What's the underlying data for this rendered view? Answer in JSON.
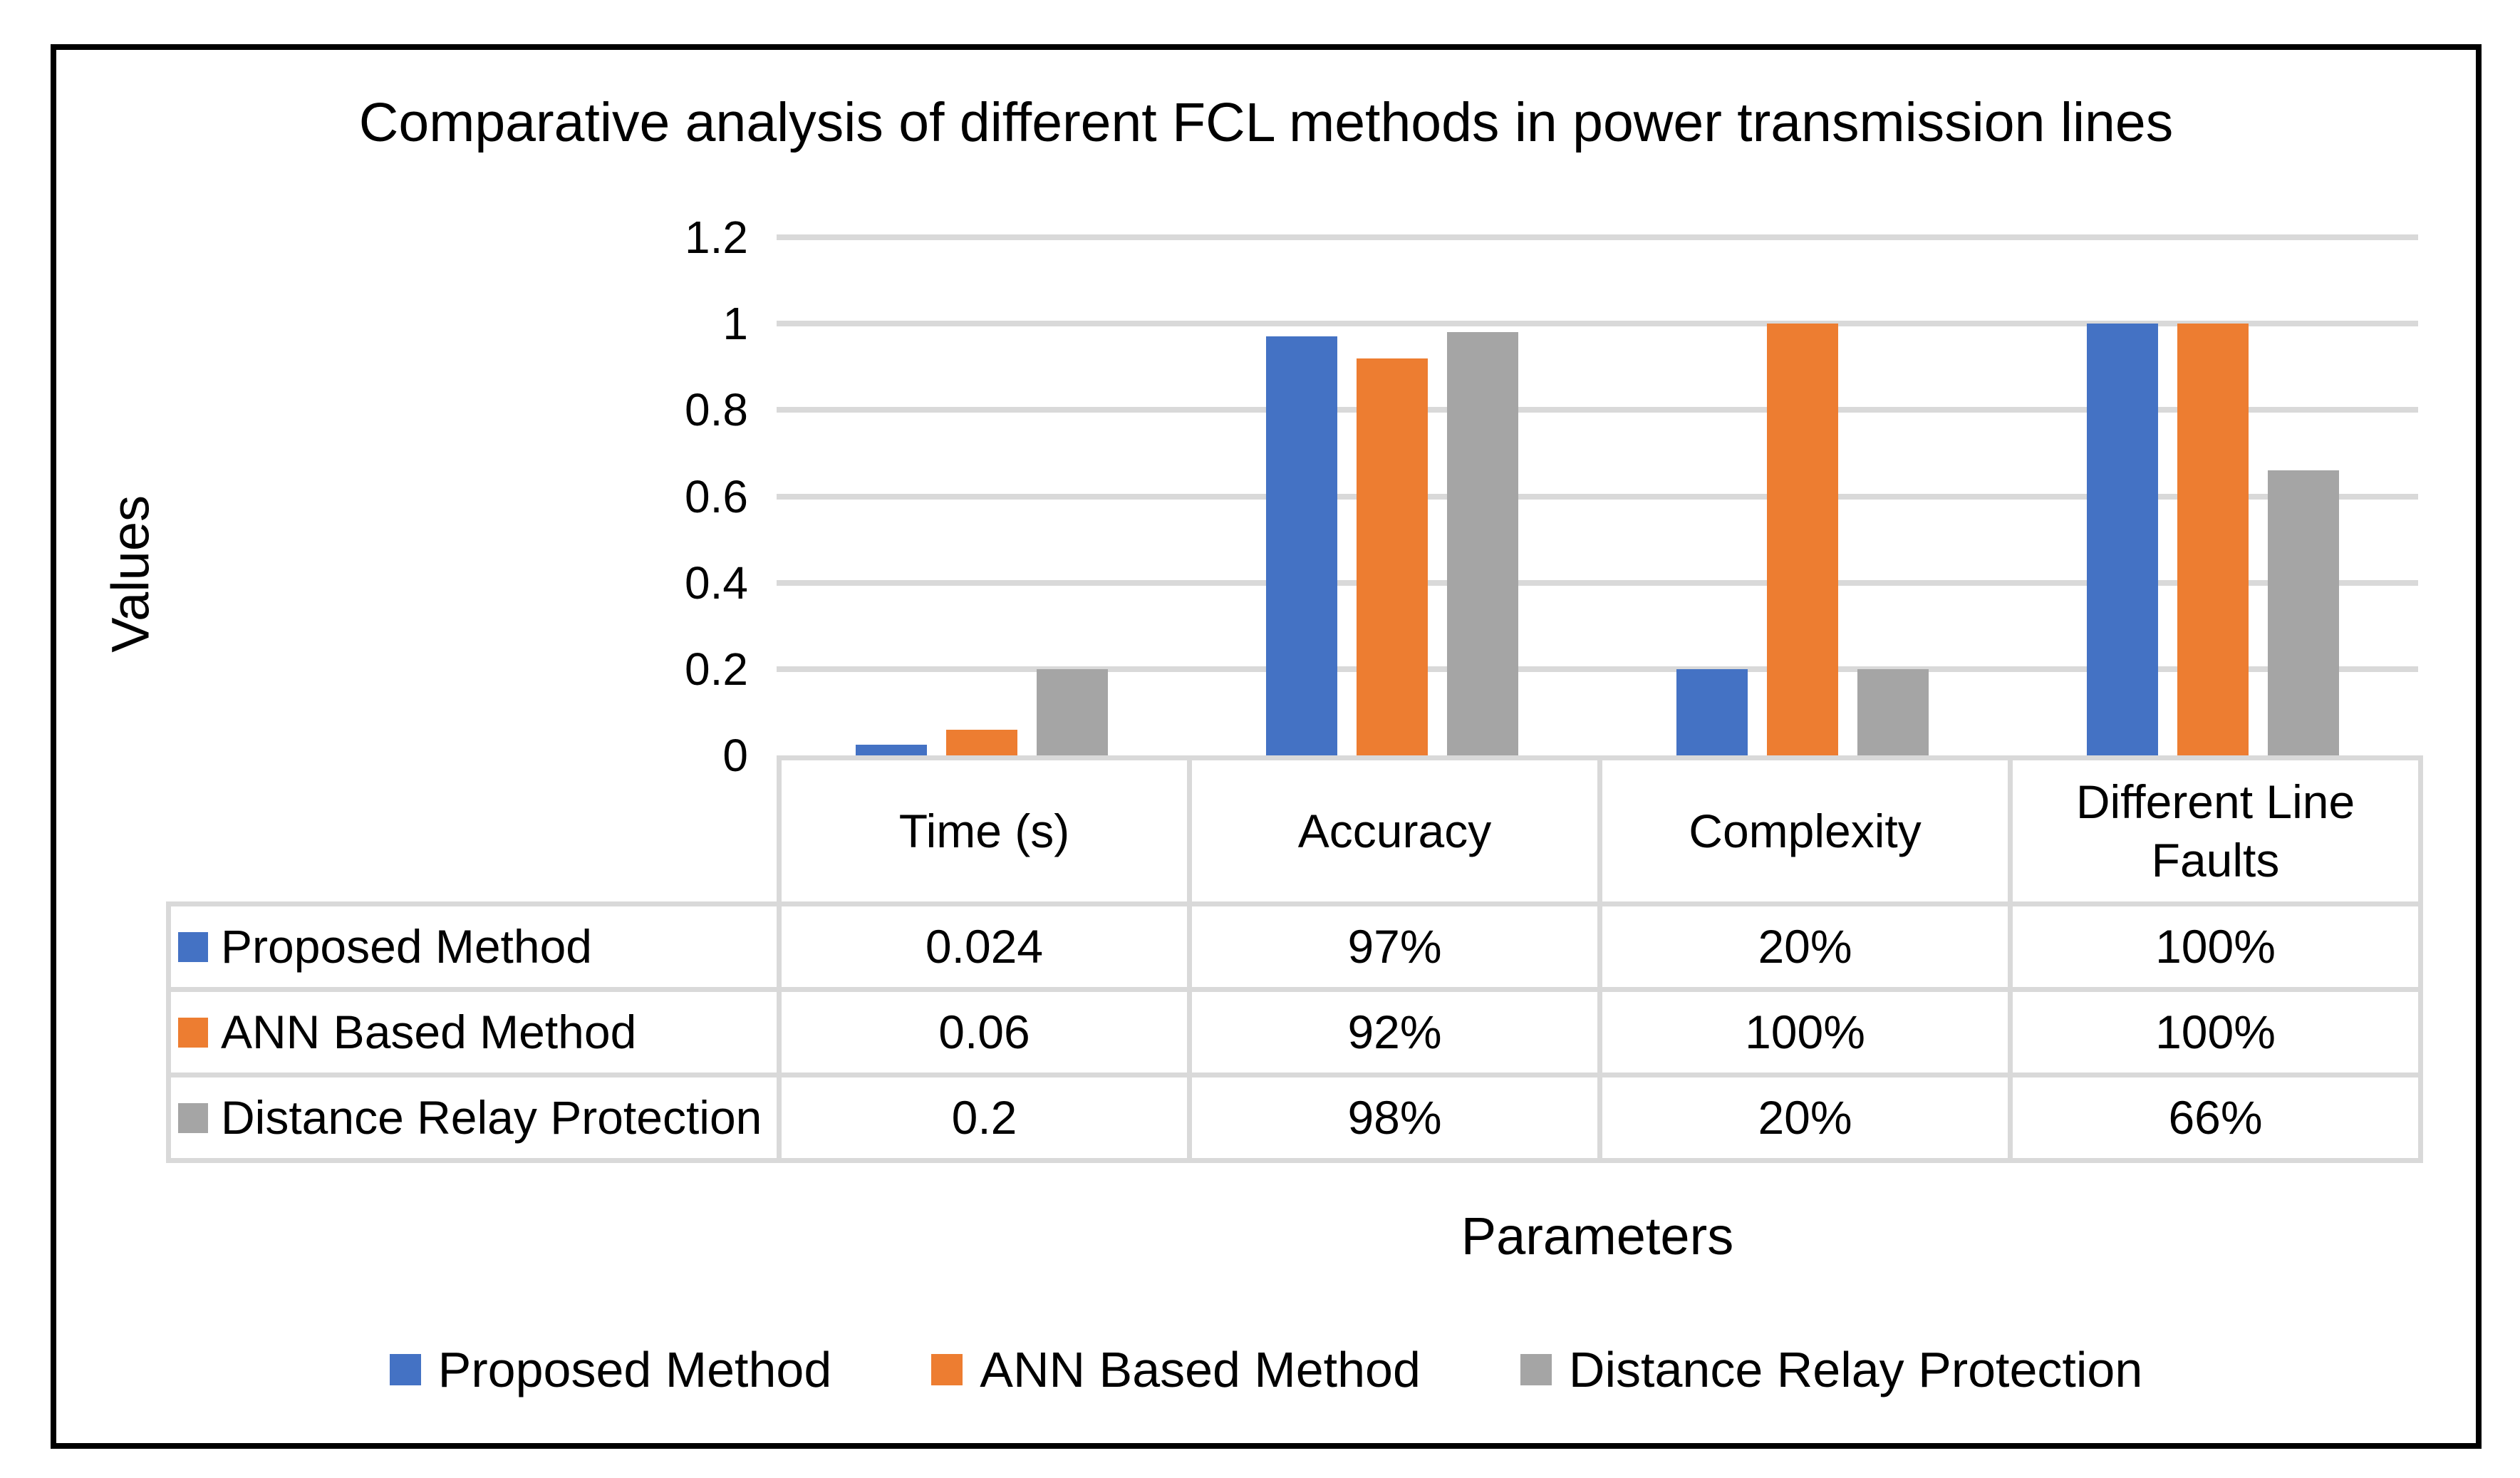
{
  "chart_data": {
    "type": "bar",
    "title": "Comparative analysis of different FCL methods in power transmission lines",
    "xlabel": "Parameters",
    "ylabel": "Values",
    "categories": [
      "Time (s)",
      "Accuracy",
      "Complexity",
      "Different Line Faults"
    ],
    "series": [
      {
        "name": "Proposed Method",
        "color": "#4472C4",
        "values": [
          0.024,
          0.97,
          0.2,
          1.0
        ],
        "table_labels": [
          "0.024",
          "97%",
          "20%",
          "100%"
        ]
      },
      {
        "name": "ANN Based Method",
        "color": "#ED7D31",
        "values": [
          0.06,
          0.92,
          1.0,
          1.0
        ],
        "table_labels": [
          "0.06",
          "92%",
          "100%",
          "100%"
        ]
      },
      {
        "name": "Distance Relay Protection",
        "color": "#A5A5A5",
        "values": [
          0.2,
          0.98,
          0.2,
          0.66
        ],
        "table_labels": [
          "0.2",
          "98%",
          "20%",
          "66%"
        ]
      }
    ],
    "ylim": [
      0,
      1.2
    ],
    "yticks": [
      {
        "label": "1.2",
        "value": 1.2
      },
      {
        "label": "1",
        "value": 1.0
      },
      {
        "label": "0.8",
        "value": 0.8
      },
      {
        "label": "0.6",
        "value": 0.6
      },
      {
        "label": "0.4",
        "value": 0.4
      },
      {
        "label": "0.2",
        "value": 0.2
      },
      {
        "label": "0",
        "value": 0.0
      }
    ],
    "grid": true,
    "legend_position": "bottom",
    "table_shown": true,
    "colors": {
      "gridline": "#D9D9D9",
      "table_border": "#D9D9D9",
      "frame_border": "#000000",
      "text": "#000000",
      "background": "#FFFFFF"
    }
  }
}
